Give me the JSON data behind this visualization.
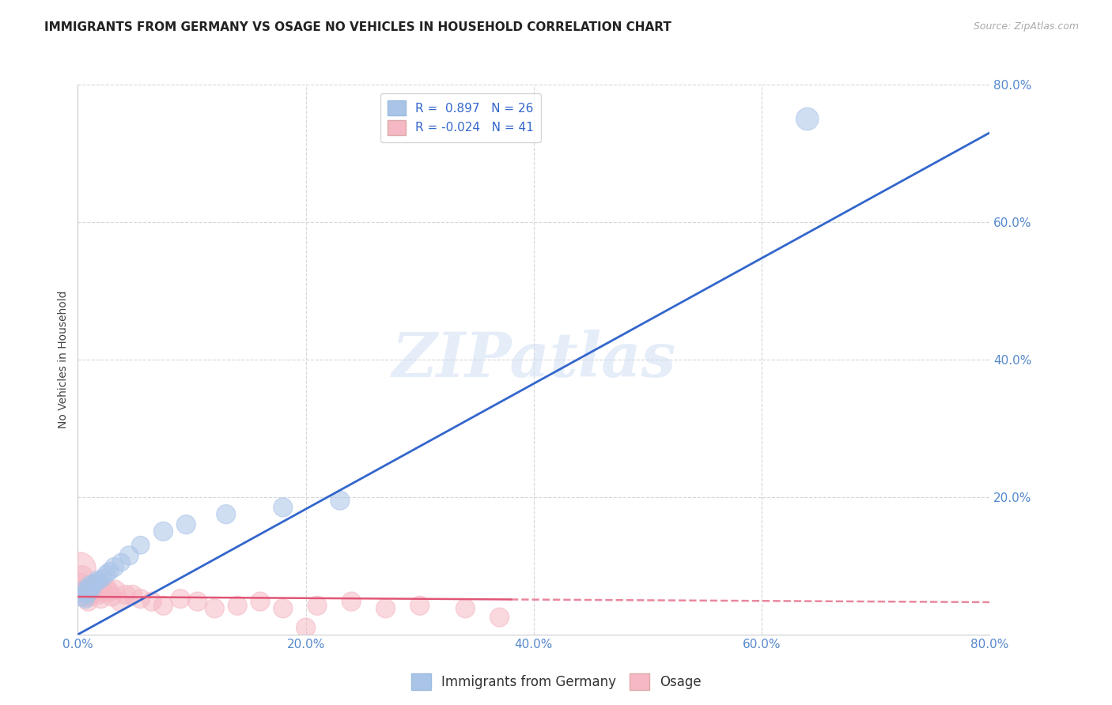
{
  "title": "IMMIGRANTS FROM GERMANY VS OSAGE NO VEHICLES IN HOUSEHOLD CORRELATION CHART",
  "source": "Source: ZipAtlas.com",
  "ylabel": "No Vehicles in Household",
  "xlim": [
    0,
    0.8
  ],
  "ylim": [
    0,
    0.8
  ],
  "xticks": [
    0.0,
    0.2,
    0.4,
    0.6,
    0.8
  ],
  "yticks": [
    0.0,
    0.2,
    0.4,
    0.6,
    0.8
  ],
  "xticklabels": [
    "0.0%",
    "20.0%",
    "40.0%",
    "60.0%",
    "80.0%"
  ],
  "yticklabels": [
    "",
    "20.0%",
    "40.0%",
    "60.0%",
    "80.0%"
  ],
  "background_color": "#ffffff",
  "grid_color": "#cccccc",
  "blue_color": "#aac4e8",
  "pink_color": "#f5b8c4",
  "blue_line_color": "#3366cc",
  "pink_line_color": "#e05575",
  "tick_color": "#5588cc",
  "r_blue": 0.897,
  "n_blue": 26,
  "r_pink": -0.024,
  "n_pink": 41,
  "legend_label_blue": "Immigrants from Germany",
  "legend_label_pink": "Osage",
  "watermark": "ZIPatlas",
  "blue_line_x0": 0.0,
  "blue_line_y0": 0.0,
  "blue_line_x1": 0.8,
  "blue_line_y1": 0.73,
  "pink_line_x0": 0.0,
  "pink_line_y0": 0.055,
  "pink_line_solid_x1": 0.38,
  "pink_line_y1_solid": 0.051,
  "pink_line_x1": 0.8,
  "pink_line_y1": 0.047,
  "blue_scatter_x": [
    0.003,
    0.005,
    0.006,
    0.007,
    0.008,
    0.009,
    0.01,
    0.011,
    0.012,
    0.013,
    0.015,
    0.017,
    0.019,
    0.022,
    0.025,
    0.028,
    0.032,
    0.038,
    0.045,
    0.055,
    0.075,
    0.095,
    0.13,
    0.18,
    0.23,
    0.64
  ],
  "blue_scatter_y": [
    0.055,
    0.065,
    0.06,
    0.05,
    0.062,
    0.058,
    0.068,
    0.072,
    0.065,
    0.07,
    0.075,
    0.08,
    0.078,
    0.082,
    0.088,
    0.092,
    0.098,
    0.105,
    0.115,
    0.13,
    0.15,
    0.16,
    0.175,
    0.185,
    0.195,
    0.75
  ],
  "blue_scatter_size": [
    25,
    20,
    22,
    18,
    20,
    20,
    22,
    25,
    20,
    22,
    22,
    20,
    20,
    20,
    22,
    22,
    25,
    22,
    25,
    22,
    25,
    25,
    25,
    25,
    25,
    35
  ],
  "pink_scatter_x": [
    0.001,
    0.002,
    0.003,
    0.004,
    0.005,
    0.006,
    0.007,
    0.008,
    0.009,
    0.01,
    0.011,
    0.012,
    0.013,
    0.015,
    0.016,
    0.018,
    0.02,
    0.022,
    0.025,
    0.028,
    0.03,
    0.033,
    0.037,
    0.042,
    0.048,
    0.055,
    0.065,
    0.075,
    0.09,
    0.105,
    0.12,
    0.14,
    0.16,
    0.18,
    0.21,
    0.24,
    0.27,
    0.3,
    0.34,
    0.37,
    0.2
  ],
  "pink_scatter_y": [
    0.095,
    0.065,
    0.075,
    0.085,
    0.06,
    0.065,
    0.055,
    0.058,
    0.048,
    0.055,
    0.062,
    0.058,
    0.068,
    0.062,
    0.072,
    0.058,
    0.052,
    0.062,
    0.068,
    0.062,
    0.055,
    0.065,
    0.048,
    0.058,
    0.058,
    0.052,
    0.048,
    0.042,
    0.052,
    0.048,
    0.038,
    0.042,
    0.048,
    0.038,
    0.042,
    0.048,
    0.038,
    0.042,
    0.038,
    0.025,
    0.01
  ],
  "pink_scatter_size": [
    80,
    25,
    25,
    30,
    25,
    25,
    25,
    25,
    25,
    25,
    25,
    25,
    25,
    25,
    25,
    25,
    25,
    25,
    25,
    25,
    25,
    25,
    25,
    25,
    25,
    25,
    25,
    25,
    25,
    25,
    25,
    25,
    25,
    25,
    25,
    25,
    25,
    25,
    25,
    25,
    25
  ]
}
